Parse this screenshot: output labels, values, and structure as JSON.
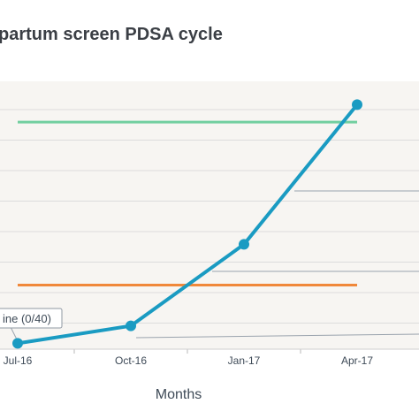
{
  "chart_data": {
    "type": "line",
    "title": "partum screen PDSA cycle",
    "xlabel": "Months",
    "ylabel": "",
    "categories": [
      "Jul-16",
      "Oct-16",
      "Jan-17",
      "Apr-17"
    ],
    "series": [
      {
        "name": "",
        "values": [
          0,
          3,
          17,
          41
        ],
        "color": "#1a9bc2"
      }
    ],
    "reference_lines": [
      {
        "value": 38,
        "color": "#72cfa0"
      },
      {
        "value": 10,
        "color": "#f0883a"
      }
    ],
    "annotations": [
      {
        "text": "ine (0/40)"
      }
    ],
    "ylim": [
      -1,
      45
    ],
    "grid": true,
    "legend": "none"
  },
  "colors": {
    "plot_background": "#f7f5f2",
    "grid": "#dcdcdc",
    "callout_line": "#9aa3ad"
  }
}
